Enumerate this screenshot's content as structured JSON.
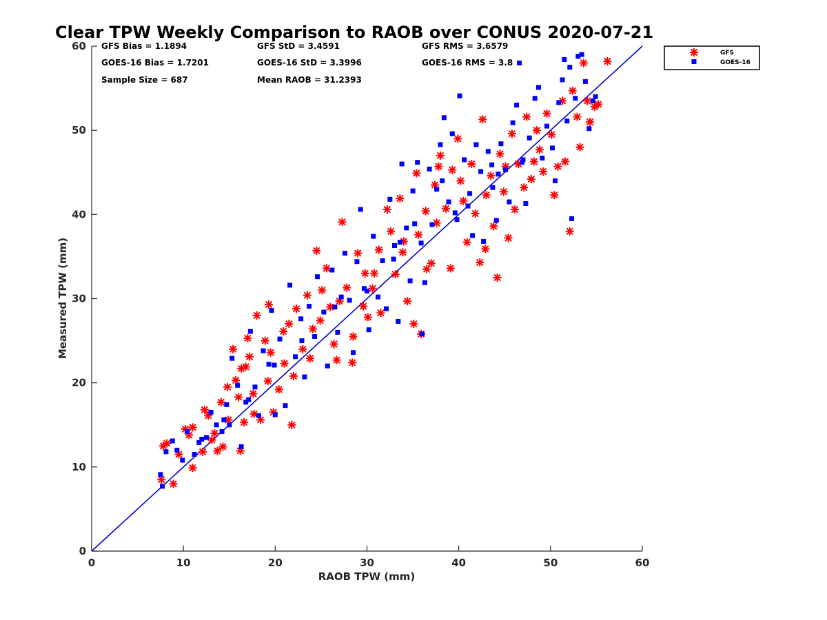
{
  "chart_data": {
    "type": "scatter",
    "title": "Clear TPW Weekly Comparison to RAOB over CONUS 2020-07-21",
    "xlabel": "RAOB TPW (mm)",
    "ylabel": "Measured TPW (mm)",
    "xlim": [
      0,
      60
    ],
    "ylim": [
      0,
      60
    ],
    "xticks": [
      "0",
      "10",
      "20",
      "30",
      "40",
      "50",
      "60"
    ],
    "yticks": [
      "0",
      "10",
      "20",
      "30",
      "40",
      "50",
      "60"
    ],
    "grid": false,
    "legend_position": "top-right outside",
    "reference_line": {
      "name": "1:1 line",
      "from": [
        0,
        0
      ],
      "to": [
        60,
        60
      ],
      "color": "#0000cc"
    },
    "stats": {
      "gfs_bias": "GFS Bias = 1.1894",
      "goes_bias": "GOES-16 Bias = 1.7201",
      "sample_size": "Sample Size = 687",
      "gfs_std": "GFS StD = 3.4591",
      "goes_std": "GOES-16 StD = 3.3996",
      "mean_raob": "Mean RAOB = 31.2393",
      "gfs_rms": "GFS RMS = 3.6579",
      "goes_rms": "GOES-16 RMS = 3.8"
    },
    "series": [
      {
        "name": "GFS",
        "marker": "asterisk",
        "color": "#ff0000",
        "points": [
          [
            7.6,
            8.5
          ],
          [
            7.8,
            12.5
          ],
          [
            8.2,
            12.8
          ],
          [
            8.9,
            8.0
          ],
          [
            9.5,
            11.5
          ],
          [
            10.2,
            14.5
          ],
          [
            10.6,
            13.8
          ],
          [
            11.0,
            14.7
          ],
          [
            11.0,
            9.9
          ],
          [
            12.1,
            11.8
          ],
          [
            12.3,
            16.8
          ],
          [
            13.1,
            13.2
          ],
          [
            13.7,
            11.9
          ],
          [
            14.1,
            17.7
          ],
          [
            14.3,
            12.4
          ],
          [
            14.9,
            15.6
          ],
          [
            15.4,
            24.0
          ],
          [
            15.7,
            20.3
          ],
          [
            16.0,
            18.3
          ],
          [
            16.2,
            11.9
          ],
          [
            16.6,
            15.3
          ],
          [
            16.8,
            21.9
          ],
          [
            17.0,
            25.3
          ],
          [
            17.2,
            23.1
          ],
          [
            17.7,
            16.3
          ],
          [
            18.0,
            28.0
          ],
          [
            18.4,
            15.6
          ],
          [
            18.9,
            25.0
          ],
          [
            19.2,
            20.2
          ],
          [
            19.3,
            29.3
          ],
          [
            19.8,
            16.5
          ],
          [
            20.4,
            19.2
          ],
          [
            21.0,
            22.3
          ],
          [
            21.5,
            27.0
          ],
          [
            21.8,
            15.0
          ],
          [
            22.3,
            28.8
          ],
          [
            23.0,
            24.0
          ],
          [
            23.5,
            30.4
          ],
          [
            24.1,
            26.4
          ],
          [
            24.5,
            35.7
          ],
          [
            25.1,
            31.0
          ],
          [
            25.6,
            33.6
          ],
          [
            26.0,
            29.0
          ],
          [
            26.4,
            24.6
          ],
          [
            26.7,
            22.7
          ],
          [
            27.3,
            39.1
          ],
          [
            27.8,
            31.3
          ],
          [
            28.4,
            22.4
          ],
          [
            28.5,
            25.5
          ],
          [
            29.0,
            35.4
          ],
          [
            29.6,
            29.1
          ],
          [
            30.1,
            27.8
          ],
          [
            30.8,
            33.0
          ],
          [
            31.3,
            35.8
          ],
          [
            31.5,
            28.3
          ],
          [
            32.2,
            40.6
          ],
          [
            32.6,
            38.0
          ],
          [
            33.1,
            32.9
          ],
          [
            33.6,
            41.9
          ],
          [
            34.0,
            36.8
          ],
          [
            34.4,
            29.7
          ],
          [
            35.1,
            27.0
          ],
          [
            35.4,
            44.9
          ],
          [
            35.9,
            25.8
          ],
          [
            36.4,
            40.4
          ],
          [
            37.0,
            34.2
          ],
          [
            37.4,
            43.5
          ],
          [
            37.6,
            39.0
          ],
          [
            38.0,
            47.0
          ],
          [
            38.6,
            40.7
          ],
          [
            39.1,
            33.6
          ],
          [
            39.3,
            45.3
          ],
          [
            39.9,
            49.0
          ],
          [
            40.5,
            41.6
          ],
          [
            40.9,
            36.7
          ],
          [
            41.4,
            46.0
          ],
          [
            41.8,
            40.1
          ],
          [
            42.3,
            34.3
          ],
          [
            42.6,
            51.3
          ],
          [
            42.9,
            35.9
          ],
          [
            43.5,
            44.6
          ],
          [
            43.8,
            38.6
          ],
          [
            44.2,
            32.5
          ],
          [
            44.5,
            47.2
          ],
          [
            44.9,
            42.7
          ],
          [
            45.4,
            37.2
          ],
          [
            45.8,
            49.6
          ],
          [
            46.1,
            40.6
          ],
          [
            46.5,
            46.0
          ],
          [
            47.1,
            43.2
          ],
          [
            47.4,
            51.6
          ],
          [
            47.9,
            44.2
          ],
          [
            48.5,
            50.0
          ],
          [
            48.8,
            47.7
          ],
          [
            49.2,
            45.1
          ],
          [
            49.6,
            52.0
          ],
          [
            50.1,
            49.5
          ],
          [
            50.4,
            42.3
          ],
          [
            50.8,
            45.7
          ],
          [
            51.3,
            53.5
          ],
          [
            51.6,
            46.3
          ],
          [
            52.1,
            38.0
          ],
          [
            52.4,
            54.7
          ],
          [
            52.9,
            51.6
          ],
          [
            53.2,
            48.0
          ],
          [
            53.6,
            58.0
          ],
          [
            54.0,
            53.5
          ],
          [
            54.3,
            51.0
          ],
          [
            54.8,
            52.8
          ],
          [
            55.2,
            53.1
          ],
          [
            56.2,
            58.2
          ],
          [
            37.8,
            45.7
          ],
          [
            33.9,
            35.5
          ],
          [
            30.6,
            31.2
          ],
          [
            23.8,
            22.9
          ],
          [
            19.5,
            23.6
          ],
          [
            14.8,
            19.5
          ],
          [
            12.7,
            16.1
          ],
          [
            40.2,
            44.0
          ],
          [
            45.1,
            45.7
          ],
          [
            48.2,
            46.3
          ],
          [
            27.0,
            29.7
          ],
          [
            35.6,
            37.6
          ],
          [
            22.0,
            20.8
          ],
          [
            17.6,
            18.7
          ],
          [
            43.0,
            42.3
          ],
          [
            36.5,
            33.5
          ],
          [
            29.8,
            33.0
          ],
          [
            24.9,
            27.4
          ],
          [
            20.9,
            26.1
          ],
          [
            16.3,
            21.7
          ],
          [
            13.4,
            14.0
          ]
        ]
      },
      {
        "name": "GOES-16",
        "marker": "square",
        "color": "#0000ff",
        "points": [
          [
            7.5,
            9.1
          ],
          [
            7.7,
            7.7
          ],
          [
            8.1,
            11.8
          ],
          [
            8.8,
            13.1
          ],
          [
            9.3,
            12.0
          ],
          [
            9.9,
            10.8
          ],
          [
            10.4,
            14.2
          ],
          [
            11.2,
            11.5
          ],
          [
            11.7,
            12.9
          ],
          [
            12.5,
            13.5
          ],
          [
            13.0,
            16.5
          ],
          [
            13.6,
            15.0
          ],
          [
            14.2,
            14.2
          ],
          [
            14.7,
            17.4
          ],
          [
            15.0,
            15.0
          ],
          [
            15.3,
            22.9
          ],
          [
            15.9,
            19.7
          ],
          [
            16.3,
            12.4
          ],
          [
            16.8,
            17.7
          ],
          [
            17.3,
            26.1
          ],
          [
            17.8,
            19.5
          ],
          [
            18.2,
            16.1
          ],
          [
            18.7,
            23.8
          ],
          [
            19.3,
            22.2
          ],
          [
            19.6,
            28.6
          ],
          [
            20.0,
            16.2
          ],
          [
            20.5,
            25.2
          ],
          [
            21.1,
            17.3
          ],
          [
            21.6,
            31.6
          ],
          [
            22.2,
            23.1
          ],
          [
            22.8,
            27.6
          ],
          [
            23.2,
            20.7
          ],
          [
            23.7,
            29.1
          ],
          [
            24.3,
            25.5
          ],
          [
            24.6,
            32.6
          ],
          [
            25.3,
            28.4
          ],
          [
            25.7,
            22.0
          ],
          [
            26.2,
            33.4
          ],
          [
            26.8,
            26.0
          ],
          [
            27.2,
            30.2
          ],
          [
            27.6,
            35.4
          ],
          [
            28.1,
            29.8
          ],
          [
            28.5,
            23.6
          ],
          [
            28.9,
            34.4
          ],
          [
            29.3,
            40.6
          ],
          [
            29.7,
            31.2
          ],
          [
            30.2,
            26.3
          ],
          [
            30.7,
            37.4
          ],
          [
            31.2,
            30.2
          ],
          [
            31.7,
            34.5
          ],
          [
            32.1,
            28.8
          ],
          [
            32.5,
            41.8
          ],
          [
            33.0,
            36.3
          ],
          [
            33.4,
            27.3
          ],
          [
            33.8,
            46.0
          ],
          [
            34.3,
            38.4
          ],
          [
            34.7,
            32.1
          ],
          [
            35.0,
            42.8
          ],
          [
            35.5,
            46.2
          ],
          [
            35.9,
            36.6
          ],
          [
            36.3,
            31.9
          ],
          [
            36.8,
            45.4
          ],
          [
            37.1,
            38.8
          ],
          [
            37.6,
            43.0
          ],
          [
            38.0,
            48.3
          ],
          [
            38.4,
            51.5
          ],
          [
            38.9,
            41.5
          ],
          [
            39.3,
            49.6
          ],
          [
            39.8,
            39.4
          ],
          [
            40.1,
            54.1
          ],
          [
            40.6,
            46.5
          ],
          [
            41.0,
            41.0
          ],
          [
            41.5,
            37.5
          ],
          [
            41.9,
            48.3
          ],
          [
            42.4,
            45.1
          ],
          [
            42.7,
            36.8
          ],
          [
            43.2,
            47.5
          ],
          [
            43.7,
            43.2
          ],
          [
            44.1,
            39.3
          ],
          [
            44.6,
            48.4
          ],
          [
            45.1,
            45.3
          ],
          [
            45.5,
            41.5
          ],
          [
            45.9,
            50.9
          ],
          [
            46.3,
            53.0
          ],
          [
            46.9,
            46.2
          ],
          [
            47.3,
            41.3
          ],
          [
            47.7,
            49.1
          ],
          [
            48.3,
            53.8
          ],
          [
            48.7,
            55.1
          ],
          [
            49.1,
            46.7
          ],
          [
            49.6,
            50.5
          ],
          [
            50.2,
            47.9
          ],
          [
            50.5,
            44.0
          ],
          [
            50.9,
            53.3
          ],
          [
            51.3,
            56.0
          ],
          [
            51.5,
            58.4
          ],
          [
            51.8,
            51.1
          ],
          [
            52.1,
            57.5
          ],
          [
            52.3,
            39.5
          ],
          [
            52.7,
            53.8
          ],
          [
            53.0,
            58.8
          ],
          [
            53.4,
            59.0
          ],
          [
            53.8,
            55.8
          ],
          [
            54.2,
            50.2
          ],
          [
            54.6,
            53.5
          ],
          [
            54.9,
            54.0
          ],
          [
            46.6,
            58.0
          ],
          [
            36.0,
            25.8
          ],
          [
            38.2,
            44.0
          ],
          [
            41.2,
            42.5
          ],
          [
            44.3,
            44.8
          ],
          [
            35.2,
            38.9
          ],
          [
            32.9,
            34.7
          ],
          [
            30.0,
            30.9
          ],
          [
            26.5,
            29.0
          ],
          [
            22.9,
            25.0
          ],
          [
            19.9,
            22.1
          ],
          [
            17.1,
            18.0
          ],
          [
            14.4,
            15.6
          ],
          [
            12.0,
            13.3
          ],
          [
            47.0,
            46.5
          ],
          [
            43.6,
            45.9
          ],
          [
            39.6,
            40.2
          ],
          [
            33.6,
            36.7
          ]
        ]
      }
    ]
  }
}
